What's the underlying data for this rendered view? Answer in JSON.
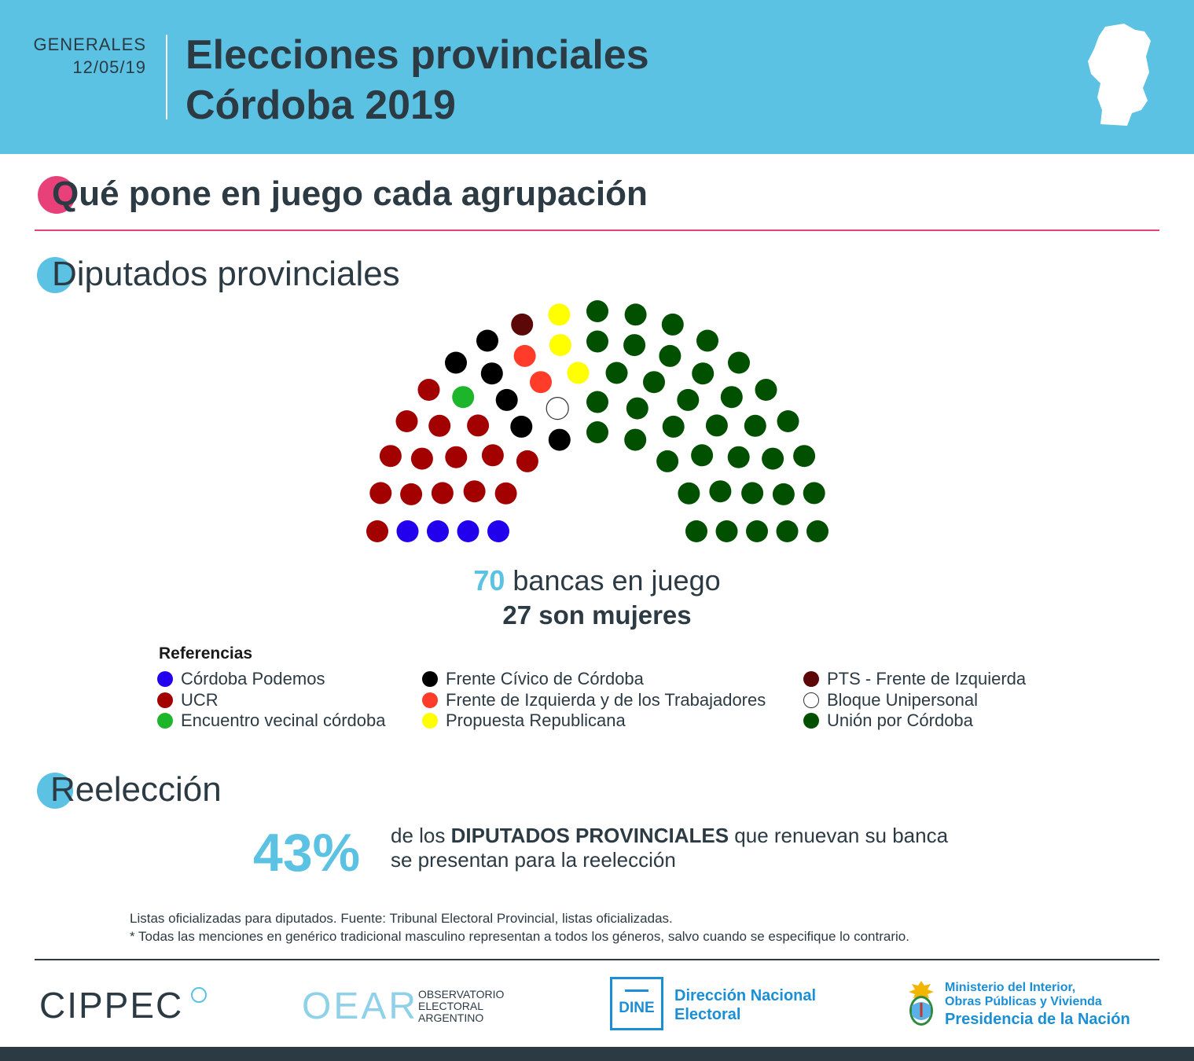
{
  "header": {
    "type": "GENERALES",
    "date": "12/05/19",
    "title_line1": "Elecciones provinciales",
    "title_line2": "Córdoba 2019"
  },
  "section_main": {
    "title": "Qué pone en juego cada agrupación"
  },
  "section_diputados": {
    "title": "Diputados provinciales"
  },
  "section_reeleccion": {
    "title": "Reelección",
    "percent": "43%",
    "text_pre": "de los ",
    "text_bold": "DIPUTADOS PROVINCIALES",
    "text_post": " que renuevan su banca",
    "text_line2": "se presentan para la reelección"
  },
  "chart_data": {
    "type": "parliament",
    "total_seats": 70,
    "series": [
      {
        "name": "Córdoba Podemos",
        "seats": 4,
        "color": "#2200ee"
      },
      {
        "name": "UCR",
        "seats": 15,
        "color": "#a30000"
      },
      {
        "name": "Encuentro vecinal córdoba",
        "seats": 1,
        "color": "#1db52a"
      },
      {
        "name": "Frente Cívico de Córdoba",
        "seats": 6,
        "color": "#000000"
      },
      {
        "name": "Frente de Izquierda y de los Trabajadores",
        "seats": 2,
        "color": "#ff3b2a"
      },
      {
        "name": "PTS - Frente de Izquierda",
        "seats": 1,
        "color": "#5c0808"
      },
      {
        "name": "Bloque Unipersonal",
        "seats": 1,
        "color": "#ffffff"
      },
      {
        "name": "Propuesta Republicana",
        "seats": 3,
        "color": "#ffff00"
      },
      {
        "name": "Unión por Córdoba",
        "seats": 37,
        "color": "#005000"
      }
    ]
  },
  "totals": {
    "seats_number": "70",
    "seats_text": " bancas en juego",
    "women_text": "27 son mujeres"
  },
  "legend": {
    "title": "Referencias",
    "columns": [
      [
        "Córdoba Podemos",
        "UCR",
        "Encuentro vecinal córdoba"
      ],
      [
        "Frente Cívico de Córdoba",
        "Frente de Izquierda y de los Trabajadores",
        "Propuesta Republicana"
      ],
      [
        "PTS - Frente de Izquierda",
        "Bloque Unipersonal",
        "Unión por Córdoba"
      ]
    ]
  },
  "notes": {
    "line1": "Listas oficializadas para diputados. Fuente: Tribunal Electoral Provincial, listas oficializadas.",
    "line2": "* Todas las menciones en genérico tradicional masculino representan a todos los géneros, salvo cuando se especifique lo contrario."
  },
  "footer": {
    "cippec": "CIPPEC",
    "oear_mark": "OEAR",
    "oear_text": [
      "OBSERVATORIO",
      "ELECTORAL",
      "ARGENTINO"
    ],
    "dine_mark": "DINE",
    "dine_text": [
      "Dirección Nacional",
      "Electoral"
    ],
    "ministerio_text": [
      "Ministerio del Interior,",
      "Obras Públicas y Vivienda"
    ],
    "presidencia": "Presidencia de la Nación"
  },
  "colors": {
    "accent_blue": "#5bc2e3",
    "accent_pink": "#e8417a",
    "text_dark": "#2c3a44"
  }
}
